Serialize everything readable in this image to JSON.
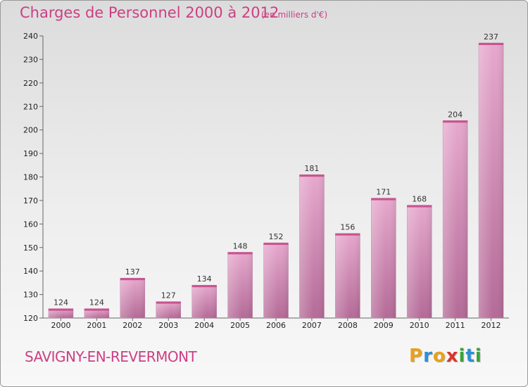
{
  "header": {
    "title": "Charges de Personnel 2000 à 2012",
    "subtitle": "(en milliers d'€)"
  },
  "footer": {
    "commune": "SAVIGNY-EN-REVERMONT",
    "logo_letters": [
      "P",
      "r",
      "o",
      "x",
      "i",
      "t",
      "i"
    ]
  },
  "colors": {
    "title": "#cc3f84",
    "bar_light": "#e3a1c9",
    "bar_dark": "#b76a98",
    "logo": [
      "#e8a11b",
      "#2b8fd6",
      "#e8a11b",
      "#d9352c",
      "#3aa23a",
      "#2b8fd6",
      "#3aa23a"
    ]
  },
  "chart_data": {
    "type": "bar",
    "categories": [
      "2000",
      "2001",
      "2002",
      "2003",
      "2004",
      "2005",
      "2006",
      "2007",
      "2008",
      "2009",
      "2010",
      "2011",
      "2012"
    ],
    "values": [
      124,
      124,
      137,
      127,
      134,
      148,
      152,
      181,
      156,
      171,
      168,
      204,
      237
    ],
    "title": "Charges de Personnel 2000 à 2012",
    "xlabel": "",
    "ylabel": "",
    "ylim": [
      120,
      240
    ],
    "yticks": [
      120,
      130,
      140,
      150,
      160,
      170,
      180,
      190,
      200,
      210,
      220,
      230,
      240
    ],
    "grid": false,
    "legend": "none"
  }
}
